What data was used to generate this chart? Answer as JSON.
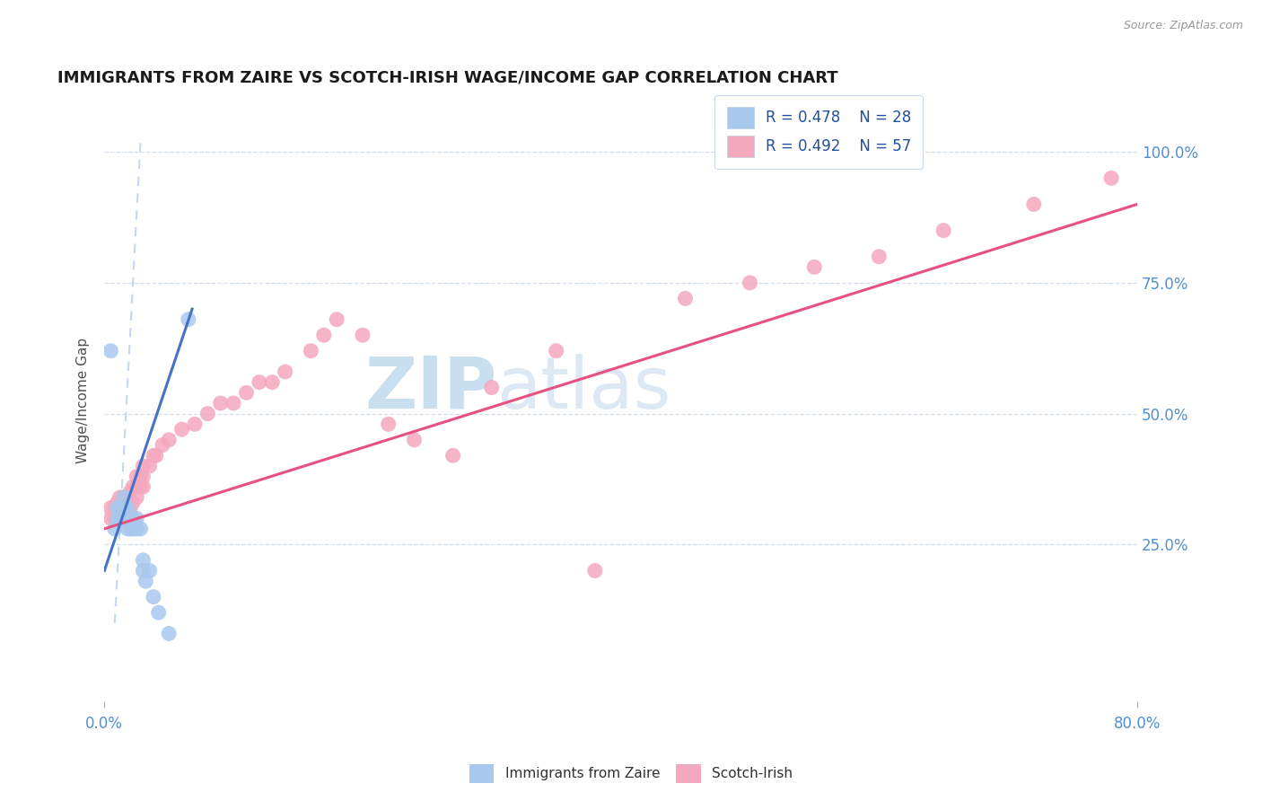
{
  "title": "IMMIGRANTS FROM ZAIRE VS SCOTCH-IRISH WAGE/INCOME GAP CORRELATION CHART",
  "source_text": "Source: ZipAtlas.com",
  "ylabel": "Wage/Income Gap",
  "xlim": [
    0.0,
    0.8
  ],
  "ylim": [
    -0.05,
    1.1
  ],
  "x_tick_labels": [
    "0.0%",
    "80.0%"
  ],
  "x_tick_positions": [
    0.0,
    0.8
  ],
  "y_tick_positions": [
    0.25,
    0.5,
    0.75,
    1.0
  ],
  "right_tick_labels": [
    "25.0%",
    "50.0%",
    "75.0%",
    "100.0%"
  ],
  "legend_r1": "R = 0.478",
  "legend_n1": "N = 28",
  "legend_r2": "R = 0.492",
  "legend_n2": "N = 57",
  "color_blue": "#a8c8ee",
  "color_pink": "#f4a8be",
  "color_blue_line": "#4472c4",
  "color_pink_line": "#e85080",
  "watermark_color": "#d0e8f8",
  "blue_scatter_x": [
    0.005,
    0.008,
    0.01,
    0.01,
    0.012,
    0.012,
    0.013,
    0.015,
    0.015,
    0.015,
    0.018,
    0.018,
    0.018,
    0.02,
    0.02,
    0.022,
    0.022,
    0.025,
    0.025,
    0.028,
    0.03,
    0.03,
    0.032,
    0.035,
    0.038,
    0.042,
    0.05,
    0.065
  ],
  "blue_scatter_y": [
    0.62,
    0.28,
    0.3,
    0.32,
    0.3,
    0.32,
    0.32,
    0.3,
    0.32,
    0.34,
    0.28,
    0.3,
    0.32,
    0.28,
    0.3,
    0.28,
    0.3,
    0.28,
    0.3,
    0.28,
    0.2,
    0.22,
    0.18,
    0.2,
    0.15,
    0.12,
    0.08,
    0.68
  ],
  "pink_scatter_x": [
    0.005,
    0.005,
    0.008,
    0.008,
    0.01,
    0.01,
    0.012,
    0.012,
    0.012,
    0.015,
    0.015,
    0.015,
    0.018,
    0.018,
    0.02,
    0.02,
    0.022,
    0.022,
    0.025,
    0.025,
    0.025,
    0.028,
    0.028,
    0.03,
    0.03,
    0.03,
    0.035,
    0.038,
    0.04,
    0.045,
    0.05,
    0.06,
    0.07,
    0.08,
    0.09,
    0.1,
    0.11,
    0.12,
    0.13,
    0.14,
    0.16,
    0.17,
    0.18,
    0.2,
    0.22,
    0.24,
    0.27,
    0.3,
    0.35,
    0.38,
    0.45,
    0.5,
    0.55,
    0.6,
    0.65,
    0.72,
    0.78
  ],
  "pink_scatter_y": [
    0.3,
    0.32,
    0.3,
    0.32,
    0.3,
    0.33,
    0.3,
    0.32,
    0.34,
    0.3,
    0.32,
    0.34,
    0.32,
    0.34,
    0.32,
    0.35,
    0.33,
    0.36,
    0.34,
    0.36,
    0.38,
    0.36,
    0.38,
    0.36,
    0.38,
    0.4,
    0.4,
    0.42,
    0.42,
    0.44,
    0.45,
    0.47,
    0.48,
    0.5,
    0.52,
    0.52,
    0.54,
    0.56,
    0.56,
    0.58,
    0.62,
    0.65,
    0.68,
    0.65,
    0.48,
    0.45,
    0.42,
    0.55,
    0.62,
    0.2,
    0.72,
    0.75,
    0.78,
    0.8,
    0.85,
    0.9,
    0.95
  ],
  "blue_line_x": [
    0.0,
    0.068
  ],
  "blue_line_y": [
    0.2,
    0.7
  ],
  "pink_line_x": [
    0.0,
    0.8
  ],
  "pink_line_y": [
    0.28,
    0.9
  ],
  "dash_line_x": [
    0.008,
    0.028
  ],
  "dash_line_y": [
    0.1,
    1.02
  ]
}
